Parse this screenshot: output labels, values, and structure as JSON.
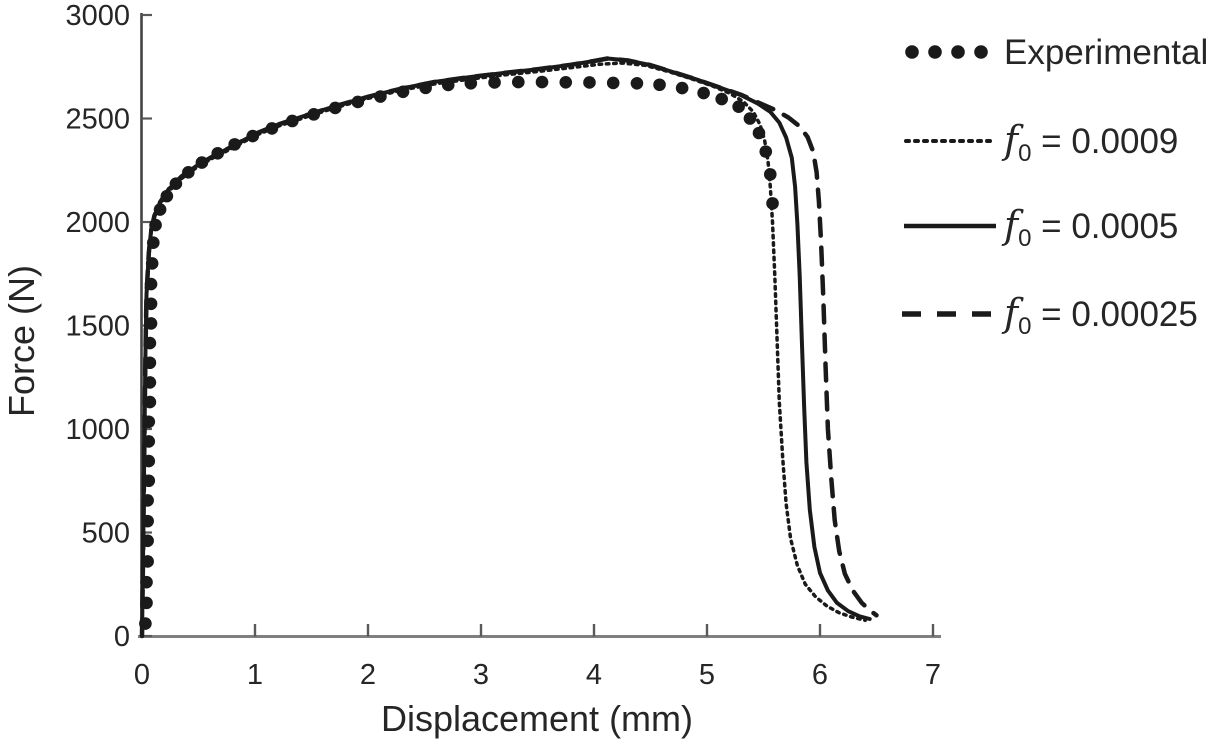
{
  "figure": {
    "background": "#ffffff",
    "ink_color": "#1a1a1a",
    "x_axis_color": "#7f7f7f",
    "y_axis_color": "#444444",
    "tick_color": "#595959",
    "text_color": "#262626"
  },
  "chart_data": {
    "type": "line",
    "title": "",
    "xlabel": "Displacement (mm)",
    "ylabel": "Force (N)",
    "xlim": [
      0,
      7
    ],
    "ylim": [
      0,
      3000
    ],
    "x_ticks": [
      0,
      1,
      2,
      3,
      4,
      5,
      6,
      7
    ],
    "y_ticks": [
      0,
      500,
      1000,
      1500,
      2000,
      2500,
      3000
    ],
    "grid": false,
    "legend_position": "right",
    "series": [
      {
        "name": "Experimental",
        "style": "scatter-dots",
        "points": [
          [
            0.03,
            60
          ],
          [
            0.04,
            160
          ],
          [
            0.04,
            260
          ],
          [
            0.05,
            360
          ],
          [
            0.05,
            460
          ],
          [
            0.05,
            555
          ],
          [
            0.05,
            655
          ],
          [
            0.06,
            750
          ],
          [
            0.06,
            845
          ],
          [
            0.06,
            940
          ],
          [
            0.06,
            1035
          ],
          [
            0.07,
            1130
          ],
          [
            0.07,
            1225
          ],
          [
            0.07,
            1320
          ],
          [
            0.07,
            1415
          ],
          [
            0.08,
            1510
          ],
          [
            0.08,
            1605
          ],
          [
            0.08,
            1700
          ],
          [
            0.09,
            1800
          ],
          [
            0.1,
            1900
          ],
          [
            0.12,
            1985
          ],
          [
            0.16,
            2060
          ],
          [
            0.22,
            2125
          ],
          [
            0.3,
            2185
          ],
          [
            0.41,
            2240
          ],
          [
            0.53,
            2287
          ],
          [
            0.67,
            2332
          ],
          [
            0.82,
            2375
          ],
          [
            0.98,
            2415
          ],
          [
            1.15,
            2452
          ],
          [
            1.33,
            2488
          ],
          [
            1.52,
            2520
          ],
          [
            1.71,
            2551
          ],
          [
            1.91,
            2580
          ],
          [
            2.11,
            2606
          ],
          [
            2.31,
            2629
          ],
          [
            2.51,
            2648
          ],
          [
            2.71,
            2662
          ],
          [
            2.91,
            2670
          ],
          [
            3.12,
            2674
          ],
          [
            3.33,
            2676
          ],
          [
            3.54,
            2676
          ],
          [
            3.75,
            2675
          ],
          [
            3.96,
            2674
          ],
          [
            4.17,
            2672
          ],
          [
            4.38,
            2670
          ],
          [
            4.58,
            2663
          ],
          [
            4.78,
            2647
          ],
          [
            4.97,
            2623
          ],
          [
            5.13,
            2594
          ],
          [
            5.28,
            2557
          ],
          [
            5.38,
            2500
          ],
          [
            5.46,
            2430
          ],
          [
            5.52,
            2340
          ],
          [
            5.56,
            2230
          ],
          [
            5.58,
            2090
          ]
        ]
      },
      {
        "name": "f0 = 0.0009",
        "style": "dotted",
        "points": [
          [
            0,
            0
          ],
          [
            0.01,
            400
          ],
          [
            0.02,
            890
          ],
          [
            0.03,
            1340
          ],
          [
            0.04,
            1640
          ],
          [
            0.06,
            1840
          ],
          [
            0.08,
            1945
          ],
          [
            0.11,
            2020
          ],
          [
            0.16,
            2085
          ],
          [
            0.24,
            2150
          ],
          [
            0.35,
            2210
          ],
          [
            0.48,
            2262
          ],
          [
            0.63,
            2310
          ],
          [
            0.8,
            2357
          ],
          [
            1.0,
            2417
          ],
          [
            1.2,
            2462
          ],
          [
            1.45,
            2507
          ],
          [
            1.7,
            2550
          ],
          [
            2.0,
            2597
          ],
          [
            2.3,
            2637
          ],
          [
            2.6,
            2668
          ],
          [
            2.9,
            2690
          ],
          [
            3.2,
            2710
          ],
          [
            3.5,
            2727
          ],
          [
            3.8,
            2746
          ],
          [
            4.05,
            2762
          ],
          [
            4.25,
            2768
          ],
          [
            4.45,
            2757
          ],
          [
            4.65,
            2728
          ],
          [
            4.85,
            2694
          ],
          [
            5.05,
            2657
          ],
          [
            5.2,
            2622
          ],
          [
            5.32,
            2582
          ],
          [
            5.41,
            2532
          ],
          [
            5.47,
            2470
          ],
          [
            5.51,
            2395
          ],
          [
            5.54,
            2295
          ],
          [
            5.56,
            2170
          ],
          [
            5.58,
            2000
          ],
          [
            5.6,
            1740
          ],
          [
            5.62,
            1430
          ],
          [
            5.64,
            1130
          ],
          [
            5.67,
            860
          ],
          [
            5.7,
            640
          ],
          [
            5.74,
            470
          ],
          [
            5.8,
            340
          ],
          [
            5.87,
            250
          ],
          [
            5.96,
            190
          ],
          [
            6.06,
            145
          ],
          [
            6.17,
            112
          ],
          [
            6.28,
            92
          ],
          [
            6.4,
            76
          ]
        ]
      },
      {
        "name": "f0 = 0.0005",
        "style": "solid",
        "points": [
          [
            0,
            0
          ],
          [
            0.01,
            400
          ],
          [
            0.02,
            900
          ],
          [
            0.03,
            1350
          ],
          [
            0.04,
            1650
          ],
          [
            0.06,
            1850
          ],
          [
            0.08,
            1955
          ],
          [
            0.11,
            2030
          ],
          [
            0.16,
            2095
          ],
          [
            0.24,
            2160
          ],
          [
            0.35,
            2220
          ],
          [
            0.48,
            2270
          ],
          [
            0.63,
            2318
          ],
          [
            0.8,
            2365
          ],
          [
            1.0,
            2425
          ],
          [
            1.2,
            2470
          ],
          [
            1.45,
            2515
          ],
          [
            1.7,
            2558
          ],
          [
            2.0,
            2605
          ],
          [
            2.3,
            2645
          ],
          [
            2.6,
            2678
          ],
          [
            2.9,
            2700
          ],
          [
            3.2,
            2720
          ],
          [
            3.5,
            2738
          ],
          [
            3.8,
            2760
          ],
          [
            4.0,
            2778
          ],
          [
            4.12,
            2790
          ],
          [
            4.3,
            2780
          ],
          [
            4.5,
            2758
          ],
          [
            4.7,
            2724
          ],
          [
            4.9,
            2690
          ],
          [
            5.1,
            2652
          ],
          [
            5.3,
            2613
          ],
          [
            5.45,
            2572
          ],
          [
            5.56,
            2532
          ],
          [
            5.64,
            2480
          ],
          [
            5.7,
            2408
          ],
          [
            5.75,
            2310
          ],
          [
            5.78,
            2170
          ],
          [
            5.8,
            1990
          ],
          [
            5.82,
            1740
          ],
          [
            5.84,
            1420
          ],
          [
            5.86,
            1100
          ],
          [
            5.88,
            840
          ],
          [
            5.91,
            610
          ],
          [
            5.95,
            430
          ],
          [
            6.0,
            305
          ],
          [
            6.07,
            220
          ],
          [
            6.15,
            160
          ],
          [
            6.25,
            120
          ],
          [
            6.35,
            95
          ],
          [
            6.44,
            82
          ]
        ]
      },
      {
        "name": "f0 = 0.00025",
        "style": "dashed",
        "points": [
          [
            0,
            0
          ],
          [
            0.01,
            400
          ],
          [
            0.02,
            900
          ],
          [
            0.03,
            1350
          ],
          [
            0.04,
            1650
          ],
          [
            0.06,
            1850
          ],
          [
            0.08,
            1955
          ],
          [
            0.11,
            2030
          ],
          [
            0.16,
            2095
          ],
          [
            0.24,
            2160
          ],
          [
            0.35,
            2220
          ],
          [
            0.48,
            2270
          ],
          [
            0.63,
            2318
          ],
          [
            0.8,
            2365
          ],
          [
            1.0,
            2425
          ],
          [
            1.2,
            2470
          ],
          [
            1.45,
            2515
          ],
          [
            1.7,
            2558
          ],
          [
            2.0,
            2605
          ],
          [
            2.3,
            2645
          ],
          [
            2.6,
            2678
          ],
          [
            2.9,
            2700
          ],
          [
            3.2,
            2720
          ],
          [
            3.5,
            2738
          ],
          [
            3.8,
            2760
          ],
          [
            4.0,
            2778
          ],
          [
            4.12,
            2790
          ],
          [
            4.3,
            2780
          ],
          [
            4.5,
            2758
          ],
          [
            4.7,
            2724
          ],
          [
            4.9,
            2690
          ],
          [
            5.1,
            2652
          ],
          [
            5.3,
            2615
          ],
          [
            5.45,
            2578
          ],
          [
            5.6,
            2542
          ],
          [
            5.72,
            2505
          ],
          [
            5.82,
            2462
          ],
          [
            5.89,
            2410
          ],
          [
            5.94,
            2340
          ],
          [
            5.97,
            2240
          ],
          [
            5.99,
            2100
          ],
          [
            6.01,
            1900
          ],
          [
            6.03,
            1620
          ],
          [
            6.05,
            1300
          ],
          [
            6.07,
            1000
          ],
          [
            6.1,
            760
          ],
          [
            6.13,
            560
          ],
          [
            6.17,
            410
          ],
          [
            6.22,
            300
          ],
          [
            6.29,
            220
          ],
          [
            6.37,
            160
          ],
          [
            6.45,
            120
          ],
          [
            6.5,
            100
          ]
        ]
      }
    ],
    "legend": [
      {
        "marker": "dots",
        "symbol": "",
        "sub": "",
        "rest": "Experimental"
      },
      {
        "marker": "dotted",
        "symbol": "f",
        "sub": "0",
        "rest": " = 0.0009"
      },
      {
        "marker": "solid",
        "symbol": "f",
        "sub": "0",
        "rest": " = 0.0005"
      },
      {
        "marker": "dashed",
        "symbol": "f",
        "sub": "0",
        "rest": " = 0.00025"
      }
    ]
  }
}
